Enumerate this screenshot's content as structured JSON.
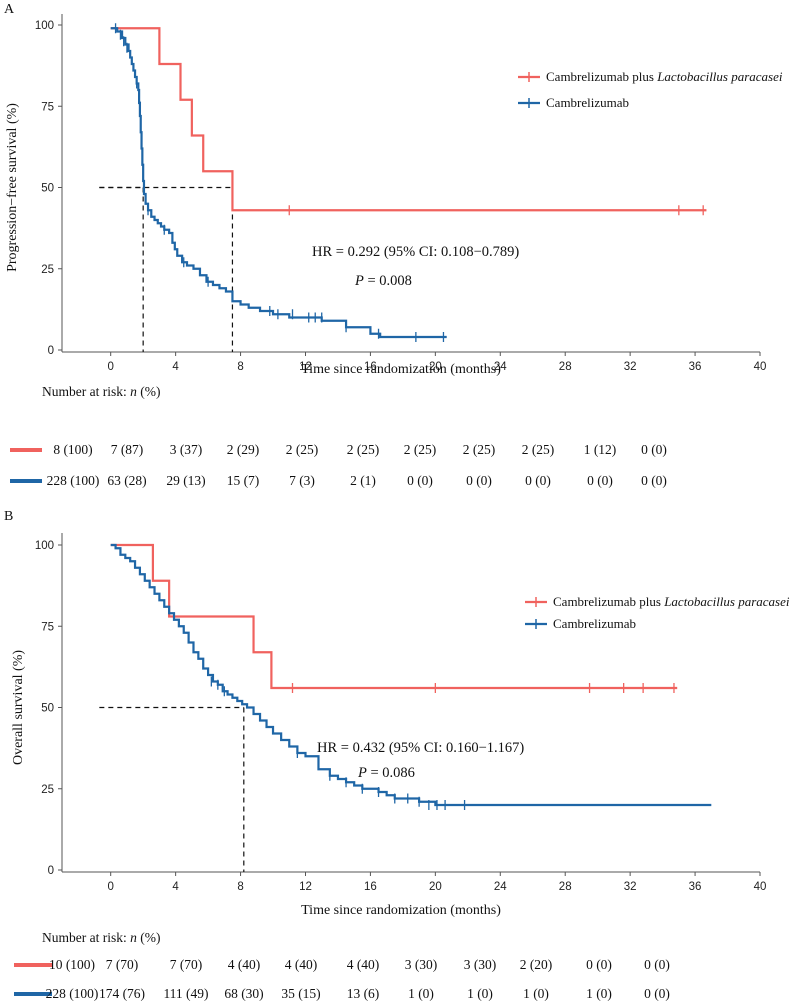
{
  "panels": [
    {
      "id": "A",
      "label": "A",
      "ylabel": "Progression−free  survival (%)",
      "xlabel": "Time since randomization (months)",
      "xlim": [
        -3,
        40
      ],
      "ylim": [
        0,
        100
      ],
      "xticks": [
        0,
        4,
        8,
        12,
        16,
        20,
        24,
        28,
        32,
        36,
        40
      ],
      "yticks": [
        0,
        25,
        50,
        75,
        100
      ],
      "legend": [
        {
          "prefix": "Cambrelizumab plus ",
          "italic": "Lactobacillus paracasei",
          "color": "#f0625e"
        },
        {
          "prefix": "Cambrelizumab",
          "italic": "",
          "color": "#1f66a6"
        }
      ],
      "hr_text": "HR = 0.292 (95% CI: 0.108−0.789)",
      "p_label": "P",
      "p_value": " = 0.008",
      "median_lines": [
        {
          "series": "Cambrelizumab",
          "x": 2.0,
          "y": 50
        },
        {
          "series": "Cambrelizumab plus Lactobacillus paracasei",
          "x": 7.5,
          "y": 50
        }
      ],
      "risk_title_prefix": "Number at risk: ",
      "risk_title_n": "n",
      "risk_title_suffix": " (%)",
      "risk_table": [
        {
          "color": "#f0625e",
          "values": [
            "8 (100)",
            "7 (87)",
            "3 (37)",
            "2 (29)",
            "2 (25)",
            "2 (25)",
            "2 (25)",
            "2 (25)",
            "2 (25)",
            "1 (12)",
            "0 (0)"
          ]
        },
        {
          "color": "#1f66a6",
          "values": [
            "228 (100)",
            "63 (28)",
            "29 (13)",
            "15 (7)",
            "7 (3)",
            "2 (1)",
            "0 (0)",
            "0 (0)",
            "0 (0)",
            "0 (0)",
            "0 (0)"
          ]
        }
      ]
    },
    {
      "id": "B",
      "label": "B",
      "ylabel": "Overall  survival (%)",
      "xlabel": "Time since randomization (months)",
      "xlim": [
        -3,
        40
      ],
      "ylim": [
        0,
        100
      ],
      "xticks": [
        0,
        4,
        8,
        12,
        16,
        20,
        24,
        28,
        32,
        36,
        40
      ],
      "yticks": [
        0,
        25,
        50,
        75,
        100
      ],
      "legend": [
        {
          "prefix": "Cambrelizumab plus ",
          "italic": "Lactobacillus paracasei",
          "color": "#f0625e"
        },
        {
          "prefix": "Cambrelizumab",
          "italic": "",
          "color": "#1f66a6"
        }
      ],
      "hr_text": "HR = 0.432 (95% CI: 0.160−1.167)",
      "p_label": "P",
      "p_value": " = 0.086",
      "median_lines": [
        {
          "series": "Cambrelizumab",
          "x": 8.2,
          "y": 50
        }
      ],
      "risk_title_prefix": "Number at risk: ",
      "risk_title_n": "n",
      "risk_title_suffix": " (%)",
      "risk_table": [
        {
          "color": "#f0625e",
          "values": [
            "10 (100)",
            "7 (70)",
            "7 (70)",
            "4 (40)",
            "4 (40)",
            "4 (40)",
            "3 (30)",
            "3 (30)",
            "2 (20)",
            "0 (0)",
            "0 (0)"
          ]
        },
        {
          "color": "#1f66a6",
          "values": [
            "228 (100)",
            "174 (76)",
            "111 (49)",
            "68 (30)",
            "35 (15)",
            "13 (6)",
            "1 (0)",
            "1 (0)",
            "1 (0)",
            "1 (0)",
            "0 (0)"
          ]
        }
      ]
    }
  ],
  "chart_data": [
    {
      "type": "line",
      "title": "A",
      "xlabel": "Time since randomization (months)",
      "ylabel": "Progression−free  survival (%)",
      "xlim": [
        -3,
        40
      ],
      "ylim": [
        0,
        100
      ],
      "step": true,
      "series": [
        {
          "name": "Cambrelizumab plus Lactobacillus paracasei",
          "color": "#f0625e",
          "x": [
            0,
            3.0,
            4.3,
            5.0,
            5.7,
            7.5,
            36.7
          ],
          "y": [
            99,
            88,
            77,
            66,
            55,
            43,
            43
          ],
          "censor_x": [
            11.0,
            35.0,
            36.5
          ],
          "censor_y": [
            43,
            43,
            43
          ]
        },
        {
          "name": "Cambrelizumab",
          "color": "#1f66a6",
          "x": [
            0,
            0.4,
            0.7,
            0.9,
            1.1,
            1.2,
            1.3,
            1.4,
            1.5,
            1.6,
            1.7,
            1.75,
            1.8,
            1.85,
            1.9,
            1.95,
            2.0,
            2.05,
            2.15,
            2.3,
            2.5,
            2.7,
            2.9,
            3.1,
            3.3,
            3.6,
            3.8,
            3.95,
            4.1,
            4.4,
            4.7,
            5.1,
            5.5,
            5.9,
            6.3,
            6.7,
            7.1,
            7.5,
            8.0,
            8.5,
            9.2,
            10.0,
            11.0,
            12.0,
            13.0,
            14.5,
            16.0,
            16.6,
            16.8,
            20.7
          ],
          "y": [
            99,
            98,
            96,
            94,
            92,
            90,
            88,
            86,
            84,
            82,
            80,
            76,
            72,
            67,
            62,
            57,
            52,
            48,
            45,
            43,
            41,
            40,
            39,
            38,
            37,
            36,
            33,
            31,
            29,
            27,
            26,
            25,
            23,
            21,
            20,
            19,
            18,
            15,
            14,
            13,
            12,
            11,
            10,
            10,
            9,
            7,
            5,
            4,
            4,
            4
          ],
          "censor_x": [
            0.3,
            0.6,
            0.8,
            1.0,
            1.6,
            1.8,
            2.3,
            3.3,
            4.5,
            6.0,
            9.8,
            10.3,
            11.2,
            12.2,
            12.6,
            13.0,
            14.5,
            16.5,
            18.8,
            20.5
          ],
          "censor_y": [
            99,
            97,
            95,
            93,
            82,
            75,
            43,
            37,
            27,
            21,
            12,
            11,
            11,
            10,
            10,
            10,
            7,
            5,
            4,
            4
          ]
        }
      ]
    },
    {
      "type": "line",
      "title": "B",
      "xlabel": "Time since randomization (months)",
      "ylabel": "Overall  survival (%)",
      "xlim": [
        -3,
        40
      ],
      "ylim": [
        0,
        100
      ],
      "step": true,
      "series": [
        {
          "name": "Cambrelizumab plus Lactobacillus paracasei",
          "color": "#f0625e",
          "x": [
            0,
            2.6,
            3.6,
            8.8,
            9.9,
            34.9
          ],
          "y": [
            100,
            89,
            78,
            67,
            56,
            56
          ],
          "censor_x": [
            11.2,
            20.0,
            29.5,
            31.6,
            32.8,
            34.7
          ],
          "censor_y": [
            56,
            56,
            56,
            56,
            56,
            56
          ]
        },
        {
          "name": "Cambrelizumab",
          "color": "#1f66a6",
          "x": [
            0,
            0.3,
            0.6,
            0.9,
            1.2,
            1.5,
            1.8,
            2.1,
            2.4,
            2.7,
            3.0,
            3.3,
            3.6,
            3.9,
            4.2,
            4.5,
            4.8,
            5.1,
            5.4,
            5.7,
            6.0,
            6.3,
            6.6,
            6.9,
            7.2,
            7.5,
            7.8,
            8.1,
            8.4,
            8.8,
            9.2,
            9.6,
            10.0,
            10.5,
            11.0,
            11.5,
            12.0,
            12.8,
            13.5,
            14.0,
            14.5,
            15.0,
            15.5,
            16.0,
            16.5,
            17.0,
            17.5,
            18.0,
            19.0,
            20.0,
            22.0,
            37.0
          ],
          "y": [
            100,
            99,
            97,
            96,
            95,
            93,
            91,
            89,
            87,
            85,
            83,
            81,
            79,
            77,
            75,
            73,
            70,
            67,
            65,
            62,
            60,
            58,
            57,
            55,
            54,
            53,
            52,
            51,
            50,
            48,
            46,
            44,
            42,
            40,
            38,
            36,
            35,
            31,
            29,
            28,
            27,
            26,
            25,
            25,
            24,
            23,
            22,
            22,
            21,
            20,
            20,
            20
          ],
          "censor_x": [
            6.2,
            6.6,
            7.0,
            11.5,
            13.5,
            14.5,
            15.5,
            16.5,
            17.5,
            18.3,
            19.0,
            19.6,
            20.1,
            20.6,
            21.8
          ],
          "censor_y": [
            58,
            57,
            55,
            36,
            29,
            27,
            25,
            24,
            22,
            22,
            21,
            20,
            20,
            20,
            20
          ]
        }
      ]
    }
  ]
}
